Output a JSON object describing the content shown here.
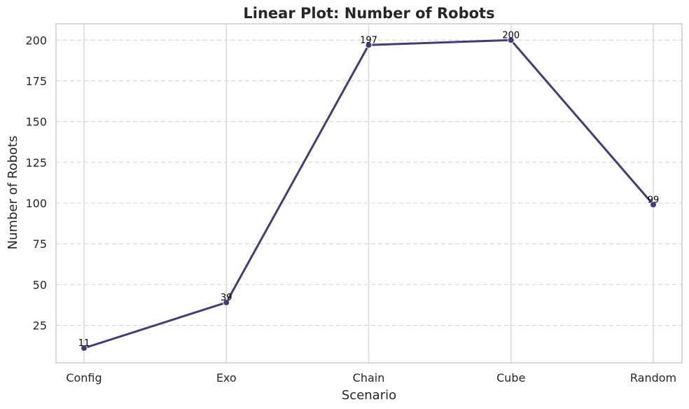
{
  "chart_data": {
    "type": "line",
    "title": "Linear Plot: Number of Robots",
    "xlabel": "Scenario",
    "ylabel": "Number of Robots",
    "categories": [
      "Config",
      "Exo",
      "Chain",
      "Cube",
      "Random"
    ],
    "series": [
      {
        "values": [
          11,
          39,
          197,
          200,
          99
        ],
        "color": "#463a7c"
      }
    ],
    "data_labels": [
      "11",
      "39",
      "197",
      "200",
      "99"
    ],
    "ylim": [
      2,
      210
    ],
    "yticks": [
      25,
      50,
      75,
      100,
      125,
      150,
      175,
      200
    ],
    "grid": {
      "y": "dashed",
      "x": "solid"
    },
    "colors": {
      "grid": "#d9d9d9",
      "axes": "#cccccc",
      "text": "#262626"
    }
  }
}
